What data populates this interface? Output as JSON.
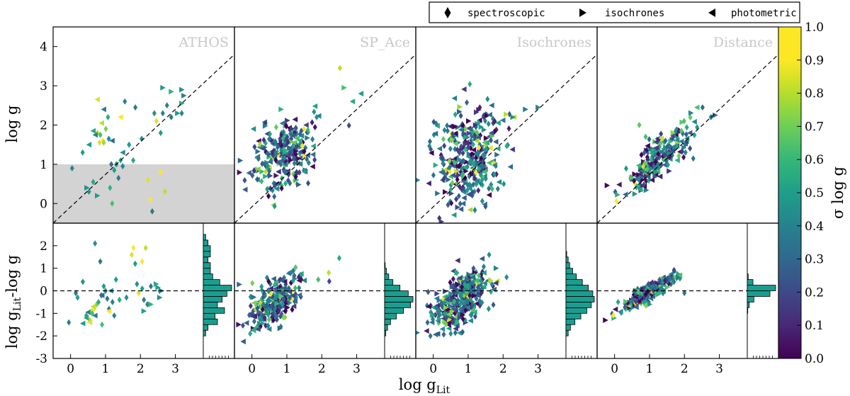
{
  "chart_data": {
    "type": "scatter",
    "legend": {
      "placement": "top-right",
      "entries": [
        {
          "marker": "diamond",
          "label": "spectroscopic"
        },
        {
          "marker": "triangle-right",
          "label": "isochrones"
        },
        {
          "marker": "triangle-left",
          "label": "photometric"
        }
      ]
    },
    "xlabel": "log g",
    "xlabel_sub": "Lit",
    "top_ylabel": "log g",
    "bottom_ylabel": "log g",
    "bottom_ylabel_sub": "Lit",
    "bottom_ylabel_suffix": "-log g",
    "xlim": [
      -0.5,
      3.8
    ],
    "top_ylim": [
      -0.5,
      4.5
    ],
    "bottom_ylim": [
      -3,
      3
    ],
    "x_ticks": [
      "0",
      "1",
      "2",
      "3"
    ],
    "top_y_ticks": [
      "0",
      "1",
      "2",
      "3",
      "4"
    ],
    "bottom_y_ticks": [
      "-3",
      "-2",
      "-1",
      "0",
      "1",
      "2"
    ],
    "shaded_region": {
      "panel": "ATHOS",
      "y_range": [
        -0.5,
        1.0
      ]
    },
    "colorbar": {
      "label": "σ log g",
      "colormap": "viridis",
      "range": [
        0.0,
        1.0
      ],
      "ticks": [
        "0.0",
        "0.1",
        "0.2",
        "0.3",
        "0.4",
        "0.5",
        "0.6",
        "0.7",
        "0.8",
        "0.9",
        "1.0"
      ]
    },
    "panels": [
      {
        "title": "ATHOS",
        "show_hist": true,
        "points": [
          [
            -0.05,
            0.9,
            0.45,
            "D"
          ],
          [
            0.2,
            1.3,
            0.55,
            "D"
          ],
          [
            0.35,
            0.3,
            0.5,
            "D"
          ],
          [
            0.45,
            0.55,
            0.6,
            "D"
          ],
          [
            0.55,
            1.8,
            0.9,
            "D"
          ],
          [
            0.6,
            1.55,
            0.95,
            "D"
          ],
          [
            0.62,
            1.75,
            0.7,
            "D"
          ],
          [
            0.68,
            1.6,
            1.0,
            "D"
          ],
          [
            0.7,
            1.55,
            0.85,
            "D"
          ],
          [
            0.75,
            1.9,
            0.8,
            "D"
          ],
          [
            0.8,
            2.2,
            0.6,
            "D"
          ],
          [
            0.82,
            1.65,
            0.5,
            "D"
          ],
          [
            0.85,
            0.4,
            0.65,
            "D"
          ],
          [
            0.88,
            1.0,
            0.35,
            "D"
          ],
          [
            0.9,
            0.0,
            0.7,
            "D"
          ],
          [
            0.95,
            0.85,
            0.55,
            "D"
          ],
          [
            1.0,
            1.0,
            0.5,
            "D"
          ],
          [
            1.05,
            0.65,
            0.4,
            "D"
          ],
          [
            1.1,
            1.1,
            0.6,
            "D"
          ],
          [
            1.15,
            0.95,
            0.45,
            "D"
          ],
          [
            1.2,
            2.6,
            0.45,
            "D"
          ],
          [
            1.3,
            1.5,
            0.55,
            "D"
          ],
          [
            1.4,
            1.1,
            0.6,
            "D"
          ],
          [
            1.45,
            2.45,
            0.4,
            "D"
          ],
          [
            1.6,
            1.65,
            0.5,
            "D"
          ],
          [
            1.75,
            0.6,
            0.95,
            "D"
          ],
          [
            1.8,
            0.1,
            1.0,
            "D"
          ],
          [
            1.85,
            -0.2,
            0.4,
            "D"
          ],
          [
            1.9,
            2.3,
            0.5,
            "D"
          ],
          [
            1.95,
            2.1,
            0.95,
            "D"
          ],
          [
            2.05,
            0.8,
            1.0,
            "D"
          ],
          [
            2.05,
            1.8,
            0.55,
            "D"
          ],
          [
            2.1,
            2.3,
            0.45,
            "D"
          ],
          [
            2.15,
            0.3,
            0.9,
            "D"
          ],
          [
            2.2,
            2.5,
            0.45,
            "D"
          ],
          [
            2.3,
            2.2,
            0.4,
            "D"
          ],
          [
            2.55,
            2.3,
            0.45,
            "D"
          ],
          [
            0.3,
            0.4,
            0.5,
            "R"
          ],
          [
            0.55,
            0.2,
            0.55,
            "R"
          ],
          [
            2.1,
            2.95,
            0.55,
            "R"
          ],
          [
            2.3,
            2.85,
            0.65,
            "R"
          ],
          [
            2.55,
            2.9,
            0.5,
            "R"
          ],
          [
            2.6,
            2.75,
            0.45,
            "R"
          ],
          [
            2.55,
            2.55,
            0.6,
            "R"
          ],
          [
            2.45,
            2.3,
            0.55,
            "R"
          ],
          [
            0.55,
            2.65,
            0.95,
            "L"
          ],
          [
            0.65,
            2.05,
            0.9,
            "L"
          ],
          [
            0.45,
            1.85,
            0.6,
            "L"
          ],
          [
            0.9,
            1.6,
            0.35,
            "L"
          ],
          [
            1.1,
            2.2,
            1.0,
            "L"
          ],
          [
            1.15,
            1.3,
            0.5,
            "L"
          ],
          [
            0.5,
            1.75,
            0.45,
            "L"
          ],
          [
            0.35,
            1.5,
            0.55,
            "L"
          ],
          [
            0.7,
            2.4,
            0.4,
            "L"
          ]
        ],
        "residuals": [
          [
            -0.05,
            -1.4,
            0.45,
            "D"
          ],
          [
            0.2,
            -0.3,
            0.55,
            "D"
          ],
          [
            0.35,
            0.4,
            0.5,
            "D"
          ],
          [
            0.45,
            -1.1,
            0.6,
            "D"
          ],
          [
            0.55,
            -1.3,
            0.9,
            "D"
          ],
          [
            0.6,
            -0.9,
            0.95,
            "D"
          ],
          [
            0.62,
            -1.0,
            0.7,
            "D"
          ],
          [
            0.68,
            -0.8,
            1.0,
            "D"
          ],
          [
            0.7,
            2.1,
            0.5,
            "D"
          ],
          [
            0.75,
            -0.6,
            0.8,
            "D"
          ],
          [
            0.8,
            -0.5,
            0.6,
            "D"
          ],
          [
            0.85,
            1.3,
            0.4,
            "D"
          ],
          [
            0.88,
            -0.2,
            0.35,
            "D"
          ],
          [
            0.9,
            -1.5,
            0.7,
            "D"
          ],
          [
            0.95,
            0.2,
            0.55,
            "D"
          ],
          [
            1.0,
            0.0,
            0.5,
            "D"
          ],
          [
            1.05,
            -0.35,
            0.4,
            "D"
          ],
          [
            1.1,
            -0.8,
            0.45,
            "D"
          ],
          [
            1.2,
            -0.5,
            0.45,
            "D"
          ],
          [
            1.3,
            0.5,
            0.55,
            "D"
          ],
          [
            1.4,
            -0.4,
            0.6,
            "D"
          ],
          [
            1.6,
            -0.3,
            0.5,
            "D"
          ],
          [
            1.75,
            1.6,
            0.95,
            "D"
          ],
          [
            1.8,
            1.9,
            1.0,
            "D"
          ],
          [
            1.85,
            1.2,
            0.55,
            "D"
          ],
          [
            1.9,
            0.3,
            0.5,
            "D"
          ],
          [
            1.95,
            -0.1,
            0.95,
            "D"
          ],
          [
            2.05,
            1.3,
            1.0,
            "D"
          ],
          [
            2.05,
            0.1,
            0.55,
            "D"
          ],
          [
            2.1,
            -0.4,
            0.45,
            "D"
          ],
          [
            2.15,
            1.9,
            0.9,
            "D"
          ],
          [
            2.2,
            -0.6,
            0.45,
            "D"
          ],
          [
            2.3,
            0.2,
            0.4,
            "D"
          ],
          [
            2.55,
            0.0,
            0.45,
            "D"
          ],
          [
            1.25,
            -1.1,
            0.45,
            "D"
          ],
          [
            0.15,
            -0.1,
            0.4,
            "D"
          ],
          [
            2.1,
            -0.9,
            0.55,
            "R"
          ],
          [
            2.3,
            -0.6,
            0.65,
            "R"
          ],
          [
            2.55,
            -0.3,
            0.5,
            "R"
          ],
          [
            2.6,
            0.0,
            0.45,
            "R"
          ],
          [
            2.45,
            0.3,
            0.6,
            "R"
          ],
          [
            2.5,
            0.15,
            0.55,
            "R"
          ],
          [
            0.55,
            -1.4,
            0.95,
            "L"
          ],
          [
            0.65,
            -0.7,
            0.9,
            "L"
          ],
          [
            0.45,
            -1.2,
            0.6,
            "L"
          ],
          [
            0.9,
            -0.2,
            0.35,
            "L"
          ],
          [
            1.1,
            -0.9,
            1.0,
            "L"
          ],
          [
            1.15,
            0.0,
            0.5,
            "L"
          ],
          [
            0.5,
            -0.95,
            0.45,
            "L"
          ],
          [
            0.35,
            -1.45,
            0.55,
            "L"
          ],
          [
            0.7,
            -1.1,
            0.4,
            "L"
          ]
        ],
        "hist": [
          {
            "lo": -3.0,
            "n": 0
          },
          {
            "lo": -2.5,
            "n": 0
          },
          {
            "lo": -2.25,
            "n": 0
          },
          {
            "lo": -2.0,
            "n": 1
          },
          {
            "lo": -1.75,
            "n": 2
          },
          {
            "lo": -1.5,
            "n": 6
          },
          {
            "lo": -1.25,
            "n": 5
          },
          {
            "lo": -1.0,
            "n": 9
          },
          {
            "lo": -0.75,
            "n": 6
          },
          {
            "lo": -0.5,
            "n": 8
          },
          {
            "lo": -0.25,
            "n": 10
          },
          {
            "lo": 0.0,
            "n": 12
          },
          {
            "lo": 0.25,
            "n": 7
          },
          {
            "lo": 0.5,
            "n": 4
          },
          {
            "lo": 0.75,
            "n": 3
          },
          {
            "lo": 1.0,
            "n": 3
          },
          {
            "lo": 1.25,
            "n": 2
          },
          {
            "lo": 1.5,
            "n": 3
          },
          {
            "lo": 1.75,
            "n": 3
          },
          {
            "lo": 2.0,
            "n": 2
          },
          {
            "lo": 2.25,
            "n": 1
          }
        ]
      },
      {
        "title": "SP_Ace",
        "show_hist": true,
        "gen": {
          "n": 260,
          "cx": 0.7,
          "sx": 0.38,
          "cy": 1.25,
          "sy": 0.42,
          "slope": 0.35,
          "rcx": -0.45,
          "rsy": 0.45,
          "seed": 7
        },
        "points": [
          [
            2.0,
            3.45,
            0.9,
            "D"
          ],
          [
            2.3,
            2.6,
            0.6,
            "L"
          ],
          [
            2.5,
            2.8,
            0.55,
            "L"
          ],
          [
            2.1,
            2.95,
            0.7,
            "R"
          ],
          [
            1.45,
            2.2,
            0.5,
            "D"
          ],
          [
            -0.05,
            1.9,
            0.5,
            "L"
          ]
        ],
        "residuals": [
          [
            2.5,
            1.45,
            0.6,
            "D"
          ],
          [
            2.2,
            0.8,
            0.9,
            "D"
          ],
          [
            1.9,
            0.5,
            0.7,
            "D"
          ],
          [
            -0.05,
            -1.9,
            0.6,
            "D"
          ]
        ],
        "hist": [
          {
            "lo": -2.0,
            "n": 2
          },
          {
            "lo": -1.75,
            "n": 5
          },
          {
            "lo": -1.5,
            "n": 10
          },
          {
            "lo": -1.25,
            "n": 20
          },
          {
            "lo": -1.0,
            "n": 32
          },
          {
            "lo": -0.75,
            "n": 44
          },
          {
            "lo": -0.5,
            "n": 48
          },
          {
            "lo": -0.25,
            "n": 40
          },
          {
            "lo": 0.0,
            "n": 26
          },
          {
            "lo": 0.25,
            "n": 14
          },
          {
            "lo": 0.5,
            "n": 7
          },
          {
            "lo": 0.75,
            "n": 3
          },
          {
            "lo": 1.0,
            "n": 1
          }
        ]
      },
      {
        "title": "Isochrones",
        "show_hist": true,
        "gen": {
          "n": 340,
          "cx": 0.8,
          "sx": 0.42,
          "cy": 1.2,
          "sy": 0.6,
          "slope": 0.2,
          "rcx": -0.35,
          "rsy": 0.55,
          "seed": 23
        },
        "points": [
          [
            2.1,
            2.4,
            0.4,
            "R"
          ],
          [
            2.4,
            2.45,
            0.45,
            "R"
          ],
          [
            1.8,
            2.2,
            0.5,
            "R"
          ],
          [
            1.3,
            2.5,
            0.35,
            "L"
          ]
        ],
        "residuals": [
          [
            1.6,
            1.6,
            0.5,
            "D"
          ],
          [
            2.1,
            0.6,
            0.5,
            "D"
          ],
          [
            1.8,
            1.0,
            0.45,
            "R"
          ],
          [
            0.5,
            -1.9,
            0.5,
            "D"
          ]
        ],
        "hist": [
          {
            "lo": -2.0,
            "n": 3
          },
          {
            "lo": -1.75,
            "n": 6
          },
          {
            "lo": -1.5,
            "n": 12
          },
          {
            "lo": -1.25,
            "n": 20
          },
          {
            "lo": -1.0,
            "n": 28
          },
          {
            "lo": -0.75,
            "n": 34
          },
          {
            "lo": -0.5,
            "n": 38
          },
          {
            "lo": -0.25,
            "n": 36
          },
          {
            "lo": 0.0,
            "n": 30
          },
          {
            "lo": 0.25,
            "n": 22
          },
          {
            "lo": 0.5,
            "n": 14
          },
          {
            "lo": 0.75,
            "n": 9
          },
          {
            "lo": 1.0,
            "n": 5
          },
          {
            "lo": 1.25,
            "n": 3
          },
          {
            "lo": 1.5,
            "n": 1
          }
        ]
      },
      {
        "title": "Distance",
        "show_hist": true,
        "gen": {
          "n": 230,
          "cx": 0.95,
          "sx": 0.4,
          "cy": 1.15,
          "sy": 0.25,
          "slope": 0.85,
          "rcx": -0.1,
          "rsy": 0.17,
          "seed": 41
        },
        "points": [
          [
            2.3,
            2.25,
            0.35,
            "R"
          ],
          [
            2.0,
            2.45,
            0.35,
            "D"
          ],
          [
            2.2,
            2.2,
            0.4,
            "D"
          ],
          [
            1.5,
            1.85,
            0.75,
            "D"
          ],
          [
            0.5,
            2.0,
            0.75,
            "D"
          ],
          [
            0.65,
            1.7,
            0.7,
            "D"
          ],
          [
            1.7,
            1.8,
            0.3,
            "L"
          ]
        ],
        "residuals": [
          [
            1.7,
            0.4,
            0.4,
            "D"
          ],
          [
            2.0,
            -0.1,
            0.4,
            "D"
          ],
          [
            0.9,
            -0.65,
            0.8,
            "D"
          ],
          [
            0.1,
            -0.5,
            0.6,
            "D"
          ]
        ],
        "hist": [
          {
            "lo": -1.0,
            "n": 1
          },
          {
            "lo": -0.75,
            "n": 4
          },
          {
            "lo": -0.5,
            "n": 14
          },
          {
            "lo": -0.25,
            "n": 48
          },
          {
            "lo": 0.0,
            "n": 60
          },
          {
            "lo": 0.25,
            "n": 12
          },
          {
            "lo": 0.5,
            "n": 2
          }
        ]
      }
    ]
  }
}
